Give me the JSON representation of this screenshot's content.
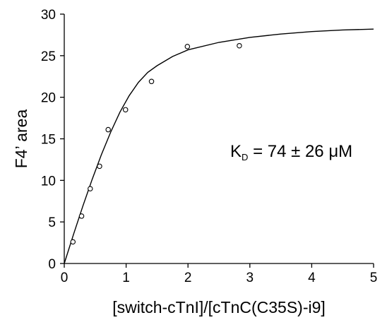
{
  "chart_data": {
    "type": "scatter",
    "title": "",
    "xlabel": "[switch-cTnI]/[cTnC(C35S)-i9]",
    "ylabel": "F4’ area",
    "xlim": [
      0,
      5
    ],
    "ylim": [
      0,
      30
    ],
    "x_ticks": [
      "0",
      "1",
      "2",
      "3",
      "4",
      "5"
    ],
    "y_ticks": [
      "0",
      "5",
      "10",
      "15",
      "20",
      "25",
      "30"
    ],
    "grid": false,
    "legend": "none",
    "annotation": {
      "main": "K",
      "subscript": "D",
      "rest": " = 74 ± 26 μM"
    },
    "series": [
      {
        "kind": "points",
        "marker": "open-circle",
        "x": [
          0.14,
          0.28,
          0.42,
          0.57,
          0.71,
          0.99,
          1.41,
          1.99,
          2.83
        ],
        "y": [
          2.6,
          5.7,
          9.0,
          11.7,
          16.1,
          18.5,
          21.9,
          26.1,
          26.2
        ]
      },
      {
        "kind": "fit-line",
        "x": [
          0,
          0.15,
          0.3,
          0.45,
          0.6,
          0.75,
          0.9,
          1.05,
          1.2,
          1.35,
          1.5,
          1.75,
          2.0,
          2.5,
          3.0,
          3.5,
          4.0,
          4.5,
          5.0
        ],
        "y": [
          0,
          3.5,
          6.9,
          10.1,
          13.1,
          15.8,
          18.2,
          20.2,
          21.8,
          23.0,
          23.8,
          24.9,
          25.7,
          26.6,
          27.2,
          27.6,
          27.9,
          28.1,
          28.2
        ]
      }
    ],
    "colors": {
      "ink": "#000000",
      "background": "#ffffff"
    }
  }
}
